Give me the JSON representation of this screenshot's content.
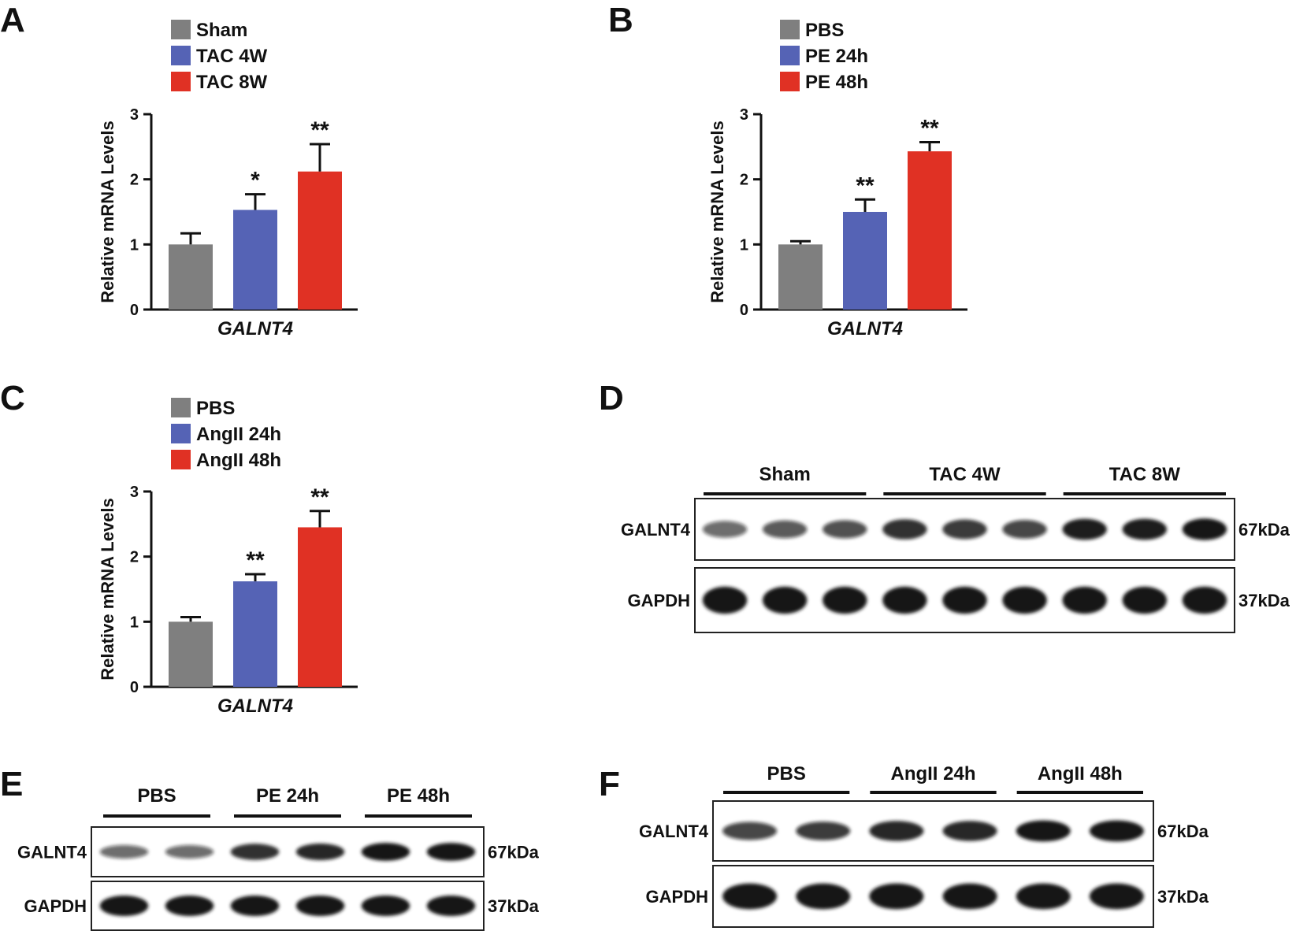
{
  "colors": {
    "gray": "#7f7f7f",
    "blue": "#5563b5",
    "red": "#e03124",
    "axis": "#111111",
    "band": "#141414"
  },
  "chart_data": [
    {
      "panel": "A",
      "type": "bar",
      "ylabel": "Relative mRNA Levels",
      "xlabel": "GALNT4",
      "ylim": [
        0,
        3
      ],
      "yticks": [
        0,
        1,
        2,
        3
      ],
      "legend_position": "top-left",
      "grid": false,
      "series": [
        {
          "name": "Sham",
          "value": 1.0,
          "error": 0.17,
          "significance": "",
          "color": "#7f7f7f"
        },
        {
          "name": "TAC 4W",
          "value": 1.53,
          "error": 0.24,
          "significance": "*",
          "color": "#5563b5"
        },
        {
          "name": "TAC 8W",
          "value": 2.12,
          "error": 0.42,
          "significance": "**",
          "color": "#e03124"
        }
      ]
    },
    {
      "panel": "B",
      "type": "bar",
      "ylabel": "Relative mRNA Levels",
      "xlabel": "GALNT4",
      "ylim": [
        0,
        3
      ],
      "yticks": [
        0,
        1,
        2,
        3
      ],
      "legend_position": "top-left",
      "grid": false,
      "series": [
        {
          "name": "PBS",
          "value": 1.0,
          "error": 0.05,
          "significance": "",
          "color": "#7f7f7f"
        },
        {
          "name": "PE 24h",
          "value": 1.5,
          "error": 0.19,
          "significance": "**",
          "color": "#5563b5"
        },
        {
          "name": "PE 48h",
          "value": 2.43,
          "error": 0.14,
          "significance": "**",
          "color": "#e03124"
        }
      ]
    },
    {
      "panel": "C",
      "type": "bar",
      "ylabel": "Relative mRNA Levels",
      "xlabel": "GALNT4",
      "ylim": [
        0,
        3
      ],
      "yticks": [
        0,
        1,
        2,
        3
      ],
      "legend_position": "top-left",
      "grid": false,
      "series": [
        {
          "name": "PBS",
          "value": 1.0,
          "error": 0.07,
          "significance": "",
          "color": "#7f7f7f"
        },
        {
          "name": "AngII 24h",
          "value": 1.62,
          "error": 0.11,
          "significance": "**",
          "color": "#5563b5"
        },
        {
          "name": "AngII 48h",
          "value": 2.45,
          "error": 0.25,
          "significance": "**",
          "color": "#e03124"
        }
      ]
    }
  ],
  "blots": [
    {
      "panel": "D",
      "groups": [
        "Sham",
        "TAC 4W",
        "TAC 8W"
      ],
      "rows": [
        {
          "name": "GALNT4",
          "kda": "67kDa",
          "lanes": [
            0.45,
            0.55,
            0.6,
            0.8,
            0.75,
            0.65,
            0.9,
            0.9,
            0.95
          ]
        },
        {
          "name": "GAPDH",
          "kda": "37kDa",
          "lanes": [
            1,
            1,
            1,
            1,
            0.95,
            1,
            1,
            1,
            1
          ]
        }
      ]
    },
    {
      "panel": "E",
      "groups": [
        "PBS",
        "PE 24h",
        "PE 48h"
      ],
      "rows": [
        {
          "name": "GALNT4",
          "kda": "67kDa",
          "lanes": [
            0.45,
            0.45,
            0.8,
            0.85,
            1,
            1
          ]
        },
        {
          "name": "GAPDH",
          "kda": "37kDa",
          "lanes": [
            1,
            1,
            1,
            1,
            1,
            1
          ]
        }
      ]
    },
    {
      "panel": "F",
      "groups": [
        "PBS",
        "AngII 24h",
        "AngII 48h"
      ],
      "rows": [
        {
          "name": "GALNT4",
          "kda": "67kDa",
          "lanes": [
            0.65,
            0.7,
            0.85,
            0.85,
            0.95,
            0.95
          ]
        },
        {
          "name": "GAPDH",
          "kda": "37kDa",
          "lanes": [
            1,
            1,
            1,
            1,
            1,
            1
          ]
        }
      ]
    }
  ]
}
